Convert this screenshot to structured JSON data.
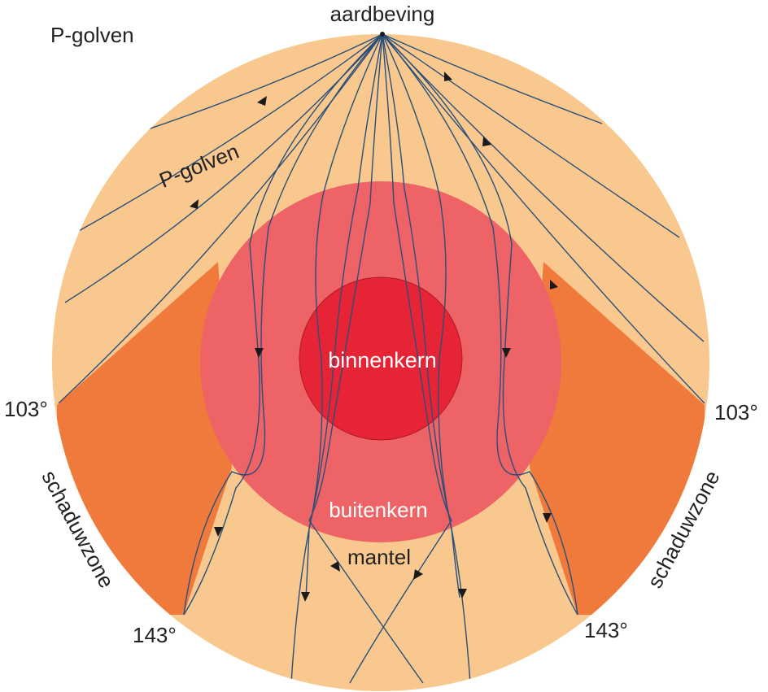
{
  "labels": {
    "corner_title": "P-golven",
    "source": "aardbeving",
    "wave_label": "P-golven",
    "inner_core": "binnenkern",
    "outer_core": "buitenkern",
    "mantle": "mantel",
    "angle_left_top": "103°",
    "angle_right_top": "103°",
    "angle_left_bottom": "143°",
    "angle_right_bottom": "143°",
    "shadow_left": "schaduwzone",
    "shadow_right": "schaduwzone"
  },
  "colors": {
    "mantle": "#f8c88e",
    "shadow_zone": "#ef7a3c",
    "outer_core": "#ee6365",
    "inner_core": "#e62435",
    "ray": "#2a4f7a"
  }
}
